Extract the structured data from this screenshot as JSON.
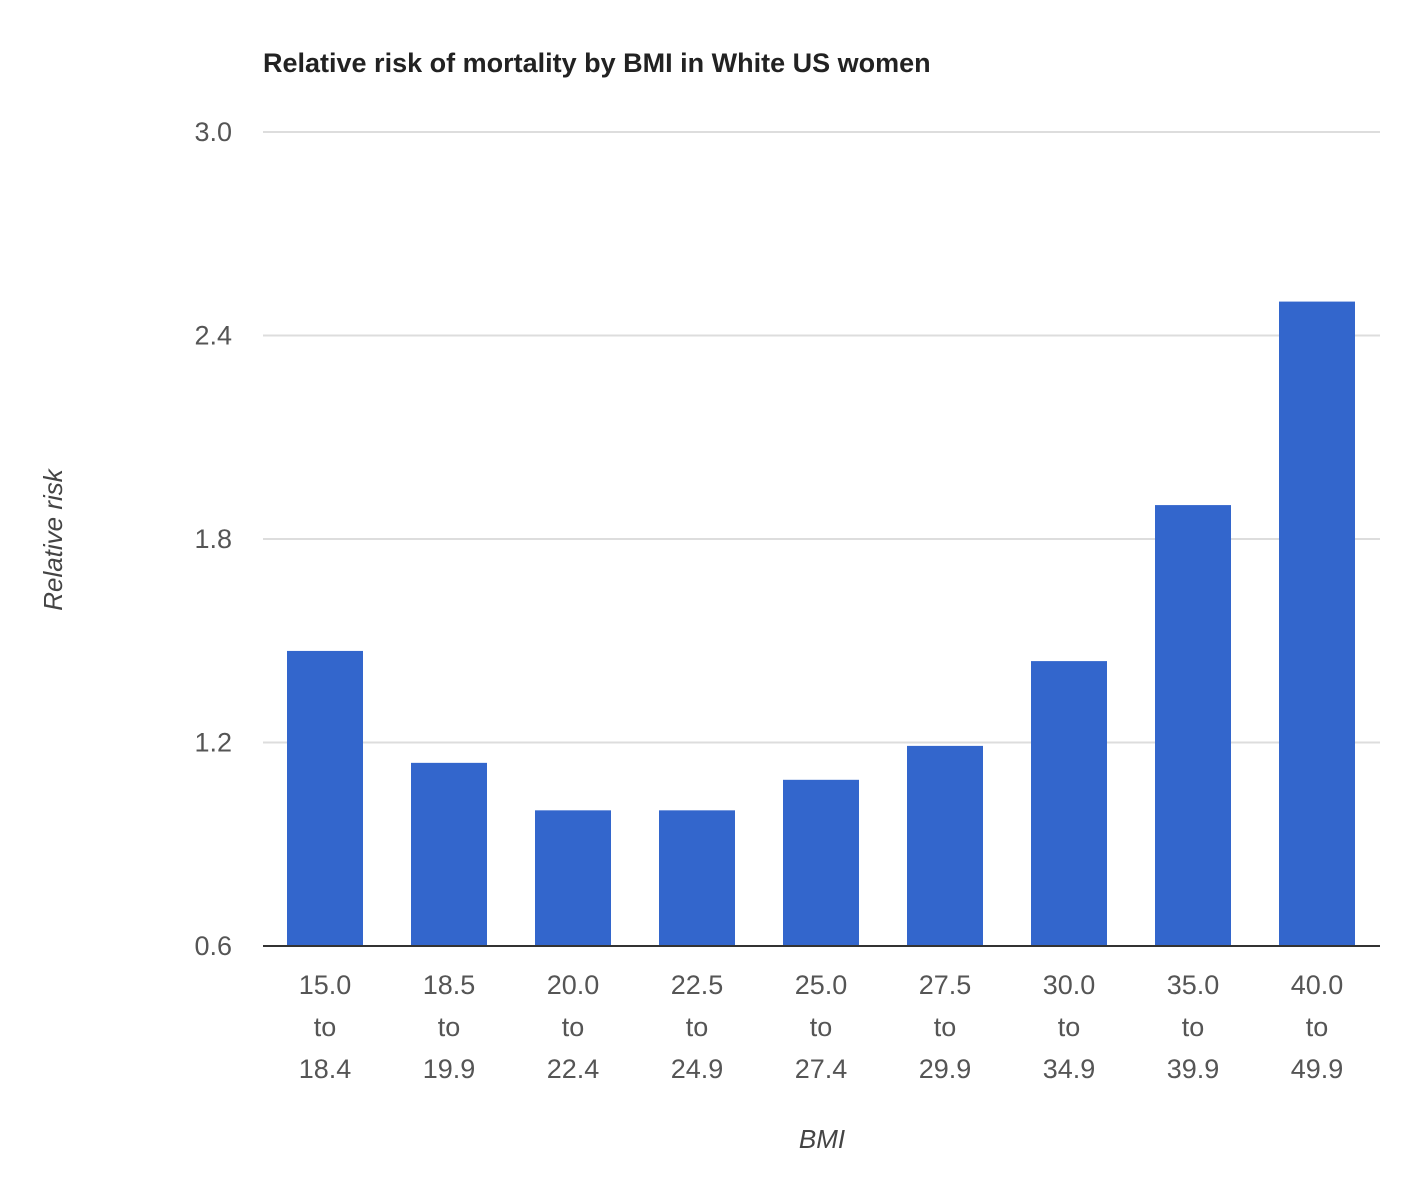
{
  "chart_data": {
    "type": "bar",
    "title": "Relative risk of mortality by BMI in White US women",
    "xlabel": "BMI",
    "ylabel": "Relative risk",
    "ylim": [
      0.6,
      3.0
    ],
    "yticks": [
      "0.6",
      "1.2",
      "1.8",
      "2.4",
      "3.0"
    ],
    "grid": true,
    "legend": "none",
    "bar_color": "#3366cc",
    "categories": [
      [
        "15.0",
        "to",
        "18.4"
      ],
      [
        "18.5",
        "to",
        "19.9"
      ],
      [
        "20.0",
        "to",
        "22.4"
      ],
      [
        "22.5",
        "to",
        "24.9"
      ],
      [
        "25.0",
        "to",
        "27.4"
      ],
      [
        "27.5",
        "to",
        "29.9"
      ],
      [
        "30.0",
        "to",
        "34.9"
      ],
      [
        "35.0",
        "to",
        "39.9"
      ],
      [
        "40.0",
        "to",
        "49.9"
      ]
    ],
    "values": [
      1.47,
      1.14,
      1.0,
      1.0,
      1.09,
      1.19,
      1.44,
      1.9,
      2.5
    ]
  }
}
